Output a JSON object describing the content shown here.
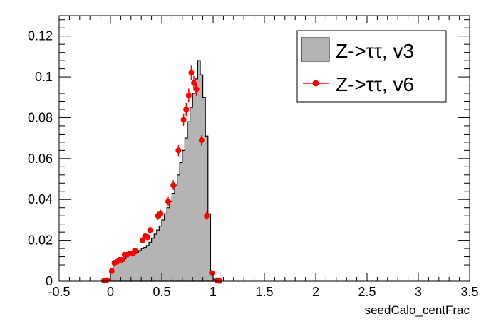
{
  "chart_data": {
    "type": "histogram",
    "title": "",
    "xlabel": "seedCalo_centFrac",
    "ylabel": "",
    "xlim": [
      -0.5,
      3.5
    ],
    "ylim": [
      0,
      0.13
    ],
    "x_ticks": [
      "-0.5",
      "0",
      "0.5",
      "1",
      "1.5",
      "2",
      "2.5",
      "3",
      "3.5"
    ],
    "y_ticks": [
      "0",
      "0.02",
      "0.04",
      "0.06",
      "0.08",
      "0.1",
      "0.12"
    ],
    "grid": false,
    "legend_position": "top-right",
    "bin_width": 0.025,
    "series": [
      {
        "name": "Z->ττ, v3",
        "style": "filled-histogram",
        "fill_color": "#b4b4b4",
        "line_color": "#000000",
        "bins": [
          [
            -0.075,
            0.0
          ],
          [
            -0.05,
            0.0005
          ],
          [
            -0.025,
            0.001
          ],
          [
            0.0,
            0.005
          ],
          [
            0.025,
            0.009
          ],
          [
            0.05,
            0.0095
          ],
          [
            0.075,
            0.01
          ],
          [
            0.1,
            0.0105
          ],
          [
            0.125,
            0.011
          ],
          [
            0.15,
            0.012
          ],
          [
            0.175,
            0.0125
          ],
          [
            0.2,
            0.013
          ],
          [
            0.225,
            0.0135
          ],
          [
            0.25,
            0.014
          ],
          [
            0.275,
            0.015
          ],
          [
            0.3,
            0.016
          ],
          [
            0.325,
            0.0165
          ],
          [
            0.35,
            0.0175
          ],
          [
            0.375,
            0.019
          ],
          [
            0.4,
            0.021
          ],
          [
            0.425,
            0.023
          ],
          [
            0.45,
            0.025
          ],
          [
            0.475,
            0.027
          ],
          [
            0.5,
            0.03
          ],
          [
            0.525,
            0.033
          ],
          [
            0.55,
            0.036
          ],
          [
            0.575,
            0.039
          ],
          [
            0.6,
            0.043
          ],
          [
            0.625,
            0.047
          ],
          [
            0.65,
            0.052
          ],
          [
            0.675,
            0.058
          ],
          [
            0.7,
            0.064
          ],
          [
            0.725,
            0.07
          ],
          [
            0.75,
            0.078
          ],
          [
            0.775,
            0.085
          ],
          [
            0.8,
            0.092
          ],
          [
            0.825,
            0.099
          ],
          [
            0.85,
            0.108
          ],
          [
            0.875,
            0.101
          ],
          [
            0.9,
            0.09
          ],
          [
            0.925,
            0.071
          ],
          [
            0.95,
            0.033
          ],
          [
            0.975,
            0.005
          ],
          [
            1.0,
            0.001
          ],
          [
            1.025,
            0.0003
          ],
          [
            1.05,
            0.0
          ]
        ]
      },
      {
        "name": "Z->ττ, v6",
        "style": "markers-with-errors",
        "marker_color": "#ff0000",
        "points": [
          [
            -0.0625,
            0.0003
          ],
          [
            -0.0375,
            0.0005
          ],
          [
            0.0125,
            0.005
          ],
          [
            0.0375,
            0.009
          ],
          [
            0.0625,
            0.0095
          ],
          [
            0.0875,
            0.0105
          ],
          [
            0.1125,
            0.0105
          ],
          [
            0.1375,
            0.013
          ],
          [
            0.1625,
            0.013
          ],
          [
            0.1875,
            0.0135
          ],
          [
            0.2125,
            0.0135
          ],
          [
            0.2375,
            0.015
          ],
          [
            0.3125,
            0.02
          ],
          [
            0.3375,
            0.022
          ],
          [
            0.3625,
            0.0215
          ],
          [
            0.3875,
            0.025
          ],
          [
            0.4625,
            0.032
          ],
          [
            0.4875,
            0.033
          ],
          [
            0.5625,
            0.039
          ],
          [
            0.6125,
            0.047
          ],
          [
            0.6625,
            0.064
          ],
          [
            0.7125,
            0.079
          ],
          [
            0.7375,
            0.084
          ],
          [
            0.7625,
            0.091
          ],
          [
            0.7875,
            0.102
          ],
          [
            0.8125,
            0.097
          ],
          [
            0.8375,
            0.094
          ],
          [
            0.8875,
            0.069
          ],
          [
            0.9375,
            0.032
          ],
          [
            0.9875,
            0.004
          ],
          [
            1.0375,
            0.0005
          ],
          [
            1.0625,
            0.0001
          ]
        ],
        "errors": [
          0.0002,
          0.0003,
          0.0008,
          0.001,
          0.001,
          0.001,
          0.001,
          0.0012,
          0.0012,
          0.0012,
          0.0012,
          0.0013,
          0.0015,
          0.0016,
          0.0016,
          0.0017,
          0.002,
          0.002,
          0.0022,
          0.0024,
          0.0028,
          0.003,
          0.0032,
          0.0033,
          0.0035,
          0.0034,
          0.0033,
          0.0028,
          0.002,
          0.0008,
          0.0003,
          0.0001
        ]
      }
    ]
  }
}
